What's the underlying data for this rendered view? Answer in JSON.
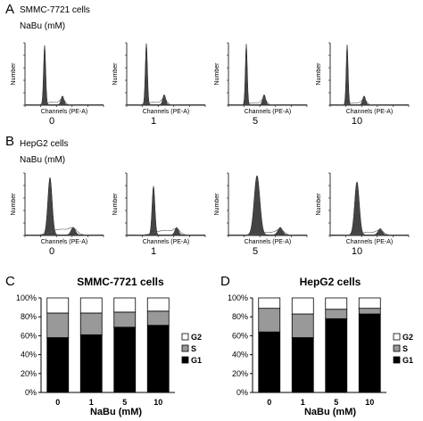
{
  "panel_a": {
    "letter": "A",
    "cell_line": "SMMC-7721 cells",
    "treatment": "NaBu (mM)",
    "doses": [
      "0",
      "1",
      "5",
      "10"
    ],
    "hist_ylabel": "Number",
    "hist_xlabel": "Channels (PE-A)"
  },
  "panel_b": {
    "letter": "B",
    "cell_line": "HepG2 cells",
    "treatment": "NaBu (mM)",
    "doses": [
      "0",
      "1",
      "5",
      "10"
    ],
    "hist_ylabel": "Number",
    "hist_xlabel": "Channels (PE-A)"
  },
  "chart_data": [
    {
      "panel": "C",
      "type": "bar",
      "stacked": true,
      "title": "SMMC-7721 cells",
      "xlabel": "NaBu (mM)",
      "ylabel": "",
      "categories": [
        "0",
        "1",
        "5",
        "10"
      ],
      "ylim": [
        0,
        100
      ],
      "yticks": [
        "0%",
        "20%",
        "40%",
        "60%",
        "80%",
        "100%"
      ],
      "legend_position": "right",
      "series": [
        {
          "name": "G1",
          "color": "#000000",
          "values": [
            58,
            61,
            69,
            71
          ]
        },
        {
          "name": "S",
          "color": "#999999",
          "values": [
            26,
            23,
            16,
            15
          ]
        },
        {
          "name": "G2",
          "color": "#ffffff",
          "values": [
            16,
            16,
            15,
            14
          ]
        }
      ]
    },
    {
      "panel": "D",
      "type": "bar",
      "stacked": true,
      "title": "HepG2 cells",
      "xlabel": "NaBu (mM)",
      "ylabel": "",
      "categories": [
        "0",
        "1",
        "5",
        "10"
      ],
      "ylim": [
        0,
        100
      ],
      "yticks": [
        "0%",
        "20%",
        "40%",
        "60%",
        "80%",
        "100%"
      ],
      "legend_position": "right",
      "series": [
        {
          "name": "G1",
          "color": "#000000",
          "values": [
            64,
            58,
            78,
            83
          ]
        },
        {
          "name": "S",
          "color": "#999999",
          "values": [
            25,
            25,
            10,
            6
          ]
        },
        {
          "name": "G2",
          "color": "#ffffff",
          "values": [
            11,
            17,
            12,
            11
          ]
        }
      ]
    }
  ]
}
